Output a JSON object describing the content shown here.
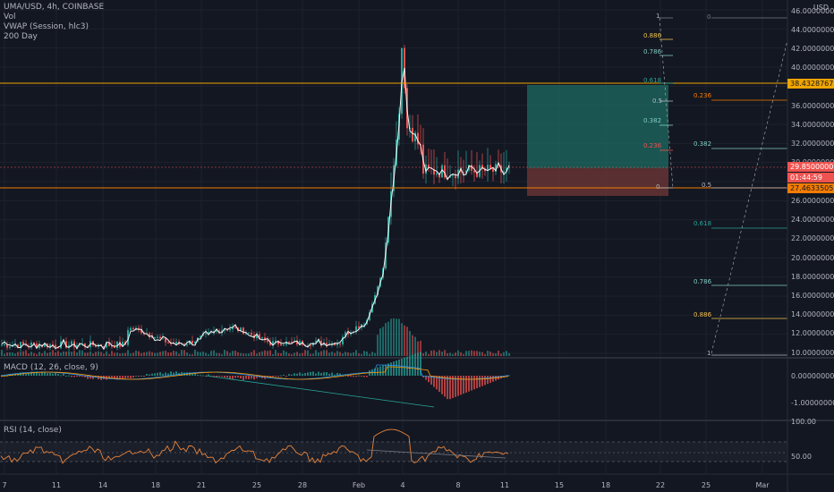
{
  "symbol": {
    "title": "UMA/USD, 4h, COINBASE",
    "indicators": [
      "Vol",
      "VWAP (Session, hlc3)",
      "200 Day"
    ]
  },
  "price_axis": {
    "currency": "USD",
    "labels": [
      "46.00000000",
      "44.00000000",
      "42.00000000",
      "40.00000000",
      "36.00000000",
      "34.00000000",
      "32.00000000",
      "30.00000000",
      "26.00000000",
      "24.00000000",
      "22.00000000",
      "20.00000000",
      "18.00000000",
      "16.00000000",
      "14.00000000",
      "12.00000000",
      "10.00000000"
    ],
    "current_price": "29.85000000",
    "countdown": "01:44:59",
    "resistance_tag": "38.43287673",
    "support_tag": "27.46335053"
  },
  "macd": {
    "title": "MACD (12, 26, close, 9)",
    "labels": [
      "0.00000000",
      "-1.00000000"
    ]
  },
  "rsi": {
    "title": "RSI (14, close)",
    "labels": [
      "100.00",
      "50.00"
    ]
  },
  "time_axis": [
    "7",
    "11",
    "14",
    "18",
    "21",
    "25",
    "28",
    "Feb",
    "4",
    "8",
    "11",
    "15",
    "18",
    "22",
    "25",
    "Mar"
  ],
  "fib_left": [
    "1",
    "0.886",
    "0.786",
    "0.618",
    "0.5",
    "0.382",
    "0.236",
    "0"
  ],
  "fib_right": [
    "0",
    "0.236",
    "0.382",
    "0.5",
    "0.618",
    "0.786",
    "0.886",
    "1"
  ],
  "colors": {
    "background": "#131722",
    "up": "#26a69a",
    "down": "#ef5350",
    "resistance": "#f0a500",
    "support": "#f57c00",
    "rsi_line": "#e8833a",
    "vwap": "#f5f5f5",
    "long_zone": "#1e6b62",
    "short_zone": "#6b3637"
  }
}
